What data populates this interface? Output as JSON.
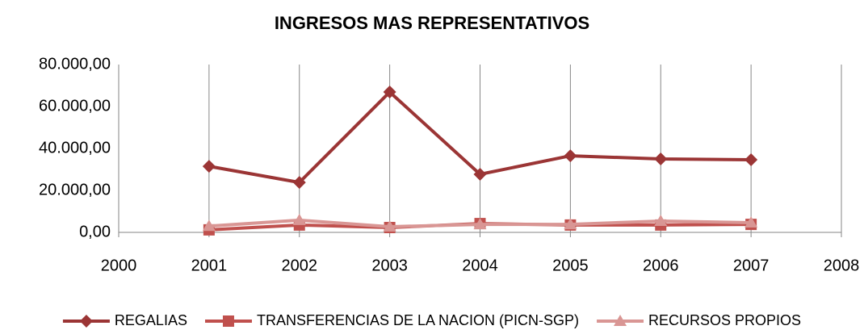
{
  "chart_data": {
    "type": "line",
    "title": "INGRESOS MAS REPRESENTATIVOS",
    "x": [
      2001,
      2002,
      2003,
      2004,
      2005,
      2006,
      2007
    ],
    "series": [
      {
        "name": "REGALIAS",
        "color": "#9b3535",
        "marker": "diamond",
        "values": [
          31500,
          23800,
          66900,
          27700,
          36500,
          35000,
          34600
        ]
      },
      {
        "name": "TRANSFERENCIAS DE LA NACION (PICN-SGP)",
        "color": "#c0504d",
        "marker": "square",
        "values": [
          1200,
          3500,
          2300,
          4200,
          3500,
          3500,
          3800
        ]
      },
      {
        "name": "RECURSOS PROPIOS",
        "color": "#d99694",
        "marker": "triangle",
        "values": [
          3000,
          5800,
          2700,
          3800,
          3800,
          5400,
          4600
        ]
      }
    ],
    "xlim": [
      2000,
      2008
    ],
    "xticks": [
      2000,
      2001,
      2002,
      2003,
      2004,
      2005,
      2006,
      2007,
      2008
    ],
    "ylim": [
      0,
      80000
    ],
    "yticks": [
      {
        "value": 0,
        "label": "0,00"
      },
      {
        "value": 20000,
        "label": "20.000,00"
      },
      {
        "value": 40000,
        "label": "40.000,00"
      },
      {
        "value": 60000,
        "label": "60.000,00"
      },
      {
        "value": 80000,
        "label": "80.000,00"
      }
    ],
    "grid": "x",
    "legend": "bottom"
  }
}
